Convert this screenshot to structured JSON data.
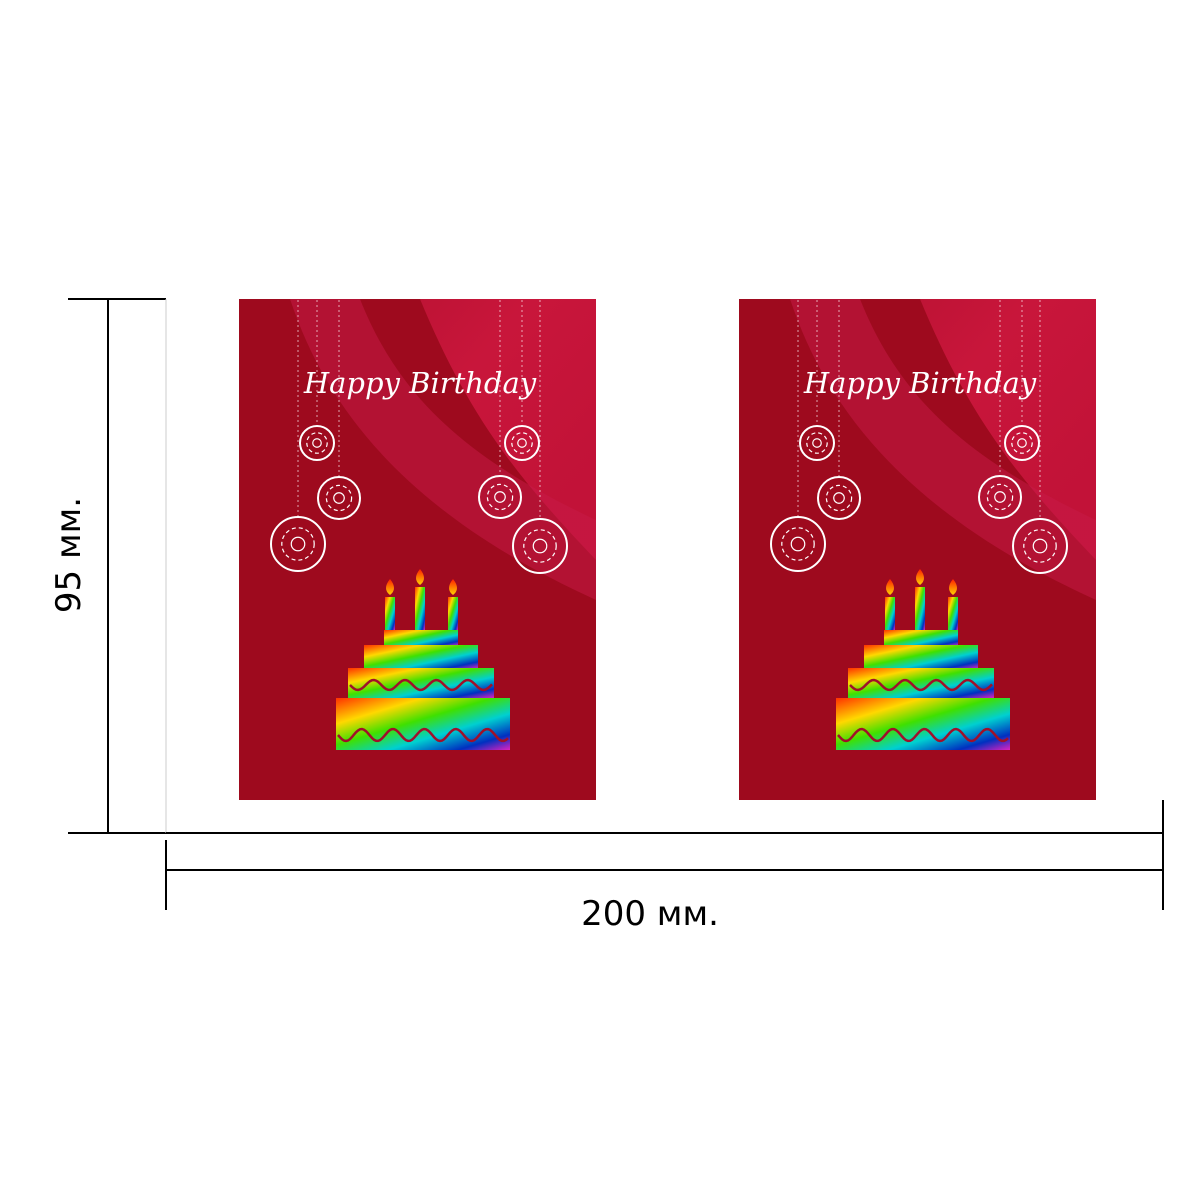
{
  "cards": [
    {
      "title": "Happy Birthday"
    },
    {
      "title": "Happy Birthday"
    }
  ],
  "dimensions": {
    "height": "95 мм.",
    "width": "200 мм."
  }
}
